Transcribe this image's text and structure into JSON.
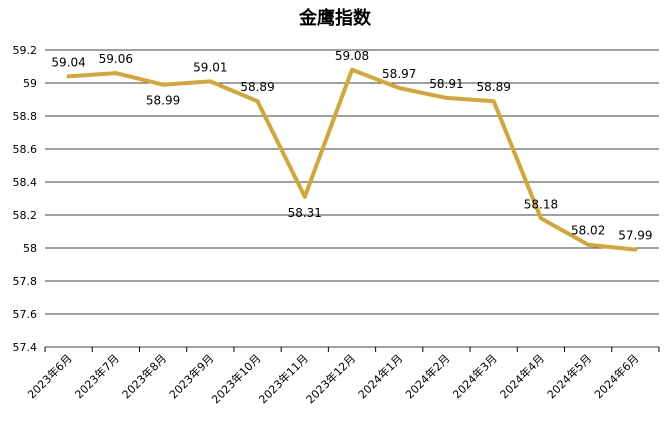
{
  "chart_data": {
    "type": "line",
    "title": "金鹰指数",
    "xlabel": "",
    "ylabel": "",
    "categories": [
      "2023年6月",
      "2023年7月",
      "2023年8月",
      "2023年9月",
      "2023年10月",
      "2023年11月",
      "2023年12月",
      "2024年1月",
      "2024年2月",
      "2024年3月",
      "2024年4月",
      "2024年5月",
      "2024年6月"
    ],
    "series": [
      {
        "values": [
          59.04,
          59.06,
          58.99,
          59.01,
          58.89,
          58.31,
          59.08,
          58.97,
          58.91,
          58.89,
          58.18,
          58.02,
          57.99
        ],
        "color": "#D4A537"
      }
    ],
    "data_labels": [
      "59.04",
      "59.06",
      "58.99",
      "59.01",
      "58.89",
      "58.31",
      "59.08",
      "58.97",
      "58.91",
      "58.89",
      "58.18",
      "58.02",
      "57.99"
    ],
    "ylim": [
      57.4,
      59.2
    ],
    "yticks": [
      "57.4",
      "57.6",
      "57.8",
      "58",
      "58.2",
      "58.4",
      "58.6",
      "58.8",
      "59",
      "59.2"
    ],
    "grid": true,
    "legend": "none"
  }
}
